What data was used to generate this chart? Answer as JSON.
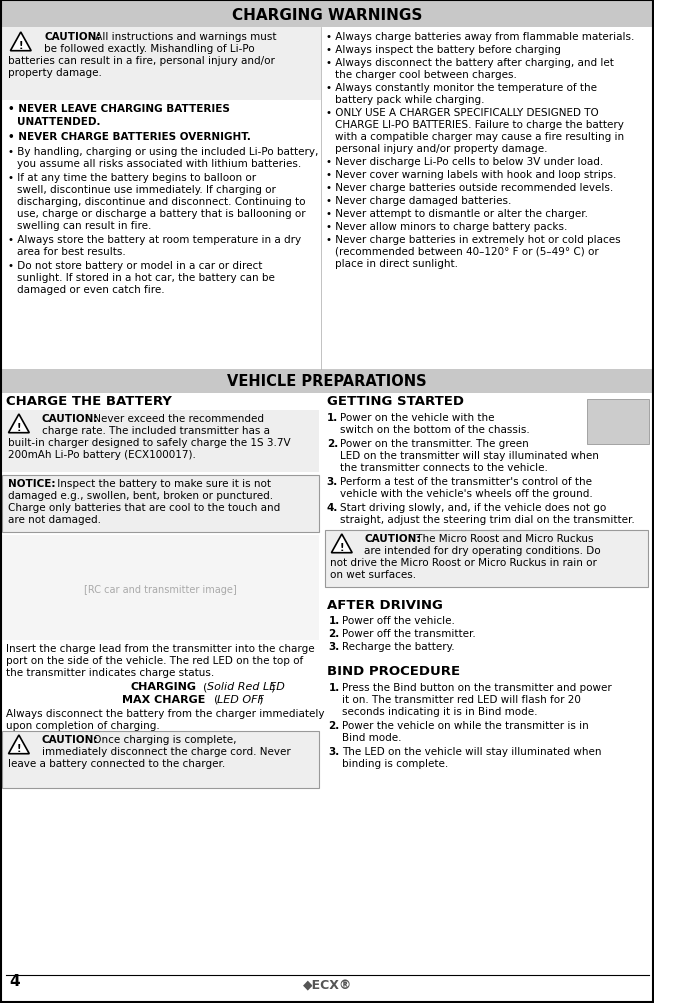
{
  "bg_color": "#ffffff",
  "header_bg": "#c8c8c8",
  "notice_bg": "#e8e8e8",
  "title_charging": "CHARGING WARNINGS",
  "title_vehicle": "VEHICLE PREPARATIONS",
  "charge_battery_title": "CHARGE THE BATTERY",
  "getting_started_title": "GETTING STARTED",
  "after_driving_title": "AFTER DRIVING",
  "bind_procedure_title": "BIND PROCEDURE",
  "page_number": "4",
  "fig_w": 6.93,
  "fig_h": 10.04,
  "dpi": 100
}
